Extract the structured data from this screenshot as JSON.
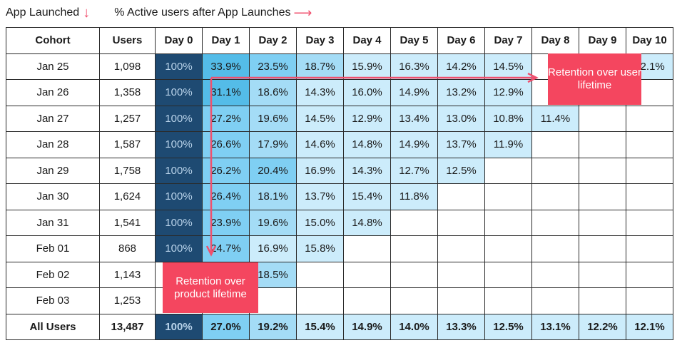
{
  "legend": {
    "app_launched": "App Launched",
    "active_users": "% Active users after App Launches"
  },
  "colors": {
    "day0": "#1e4a72",
    "callout": "#f4465f",
    "arrow": "#f0506e",
    "light": "#ccecfb",
    "mid": "#a4dcf6",
    "strong": "#7fcff3",
    "deep": "#54bce8"
  },
  "chart_data": {
    "type": "table",
    "columns": [
      "Cohort",
      "Users",
      "Day 0",
      "Day 1",
      "Day 2",
      "Day 3",
      "Day 4",
      "Day 5",
      "Day 6",
      "Day 7",
      "Day 8",
      "Day 9",
      "Day 10"
    ],
    "rows": [
      {
        "cohort": "Jan 25",
        "users": "1,098",
        "values": [
          "100%",
          "33.9%",
          "23.5%",
          "18.7%",
          "15.9%",
          "16.3%",
          "14.2%",
          "14.5%",
          "",
          "",
          "12.1%"
        ]
      },
      {
        "cohort": "Jan 26",
        "users": "1,358",
        "values": [
          "100%",
          "31.1%",
          "18.6%",
          "14.3%",
          "16.0%",
          "14.9%",
          "13.2%",
          "12.9%",
          "",
          "",
          ""
        ]
      },
      {
        "cohort": "Jan 27",
        "users": "1,257",
        "values": [
          "100%",
          "27.2%",
          "19.6%",
          "14.5%",
          "12.9%",
          "13.4%",
          "13.0%",
          "10.8%",
          "11.4%",
          "",
          ""
        ]
      },
      {
        "cohort": "Jan 28",
        "users": "1,587",
        "values": [
          "100%",
          "26.6%",
          "17.9%",
          "14.6%",
          "14.8%",
          "14.9%",
          "13.7%",
          "11.9%",
          "",
          "",
          ""
        ]
      },
      {
        "cohort": "Jan 29",
        "users": "1,758",
        "values": [
          "100%",
          "26.2%",
          "20.4%",
          "16.9%",
          "14.3%",
          "12.7%",
          "12.5%",
          "",
          "",
          "",
          ""
        ]
      },
      {
        "cohort": "Jan 30",
        "users": "1,624",
        "values": [
          "100%",
          "26.4%",
          "18.1%",
          "13.7%",
          "15.4%",
          "11.8%",
          "",
          "",
          "",
          "",
          ""
        ]
      },
      {
        "cohort": "Jan 31",
        "users": "1,541",
        "values": [
          "100%",
          "23.9%",
          "19.6%",
          "15.0%",
          "14.8%",
          "",
          "",
          "",
          "",
          "",
          ""
        ]
      },
      {
        "cohort": "Feb 01",
        "users": "868",
        "values": [
          "100%",
          "24.7%",
          "16.9%",
          "15.8%",
          "",
          "",
          "",
          "",
          "",
          "",
          ""
        ]
      },
      {
        "cohort": "Feb 02",
        "users": "1,143",
        "values": [
          "",
          "",
          "18.5%",
          "",
          "",
          "",
          "",
          "",
          "",
          "",
          ""
        ]
      },
      {
        "cohort": "Feb 03",
        "users": "1,253",
        "values": [
          "",
          "",
          "",
          "",
          "",
          "",
          "",
          "",
          "",
          "",
          ""
        ]
      }
    ],
    "total": {
      "cohort": "All Users",
      "users": "13,487",
      "values": [
        "100%",
        "27.0%",
        "19.2%",
        "15.4%",
        "14.9%",
        "14.0%",
        "13.3%",
        "12.5%",
        "13.1%",
        "12.2%",
        "12.1%"
      ]
    },
    "annotations": {
      "user_lifetime": "Retention over user lifetime",
      "product_lifetime": "Retention over product lifetime"
    }
  }
}
